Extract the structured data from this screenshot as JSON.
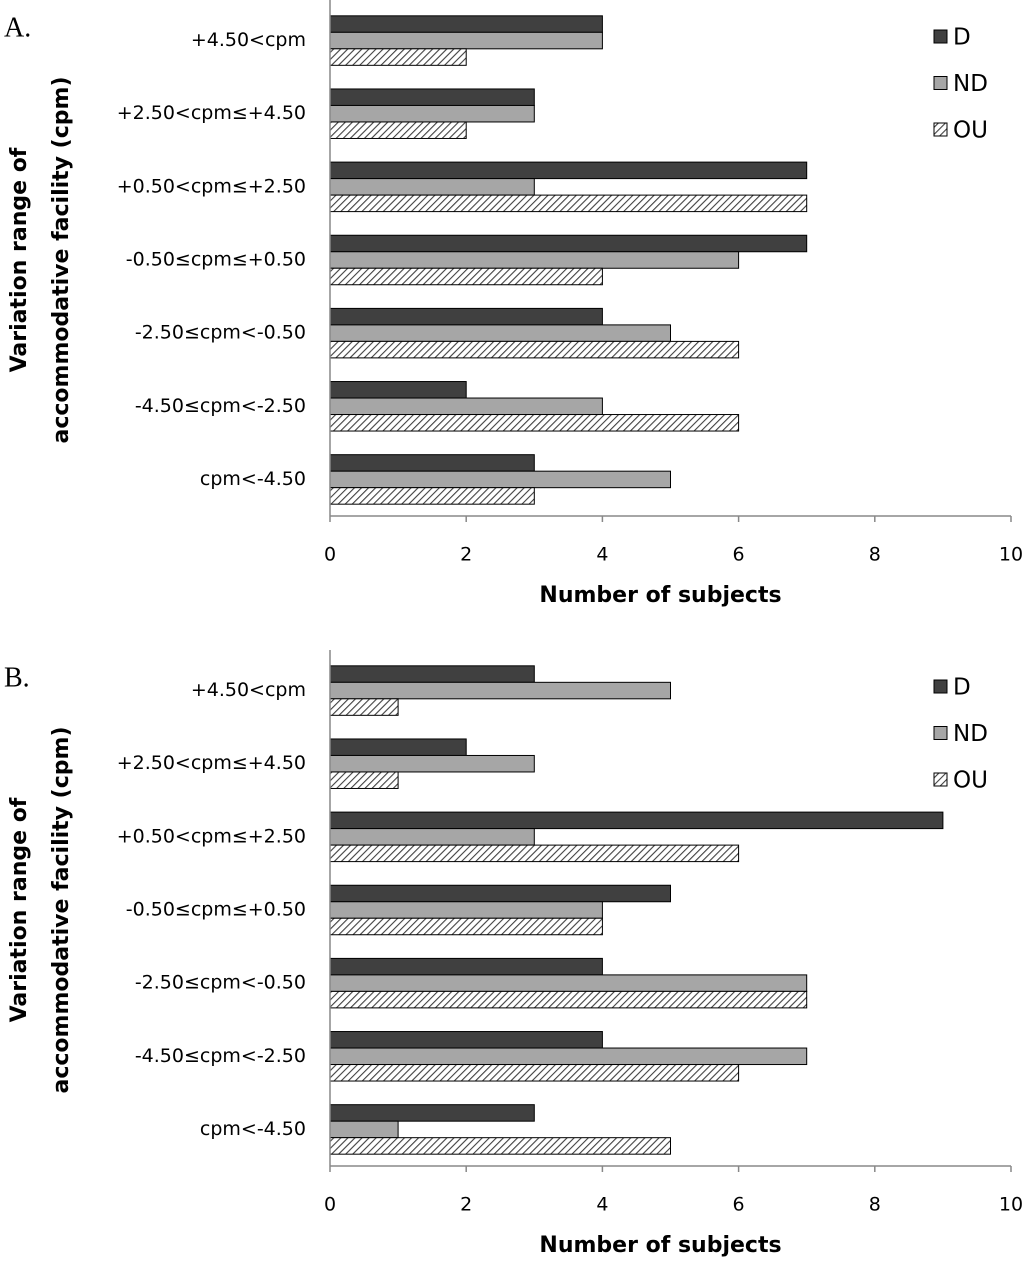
{
  "chart_data": [
    {
      "type": "bar",
      "orientation": "horizontal",
      "panel_label": "A.",
      "ylabel": [
        "Variation range of",
        "accommodative facility (cpm)"
      ],
      "xlabel": "Number of subjects",
      "categories": [
        "+4.50<cpm",
        "+2.50<cpm≤+4.50",
        "+0.50<cpm≤+2.50",
        "-0.50≤cpm≤+0.50",
        "-2.50≤cpm<-0.50",
        "-4.50≤cpm<-2.50",
        "cpm<-4.50"
      ],
      "series": [
        {
          "name": "D",
          "color": "#404040",
          "values": [
            4,
            3,
            7,
            7,
            4,
            2,
            3
          ]
        },
        {
          "name": "ND",
          "color": "#a6a6a6",
          "values": [
            4,
            3,
            3,
            6,
            5,
            4,
            5
          ]
        },
        {
          "name": "OU",
          "color": "#404040",
          "hatch": true,
          "values": [
            2,
            2,
            7,
            4,
            6,
            6,
            3
          ]
        }
      ],
      "xlim": [
        0,
        10
      ],
      "xticks": [
        0,
        2,
        4,
        6,
        8,
        10
      ],
      "grid": false,
      "legend": "top-right"
    },
    {
      "type": "bar",
      "orientation": "horizontal",
      "panel_label": "B.",
      "ylabel": [
        "Variation range of",
        "accommodative facility (cpm)"
      ],
      "xlabel": "Number of subjects",
      "categories": [
        "+4.50<cpm",
        "+2.50<cpm≤+4.50",
        "+0.50<cpm≤+2.50",
        "-0.50≤cpm≤+0.50",
        "-2.50≤cpm<-0.50",
        "-4.50≤cpm<-2.50",
        "cpm<-4.50"
      ],
      "series": [
        {
          "name": "D",
          "color": "#404040",
          "values": [
            3,
            2,
            9,
            5,
            4,
            4,
            3
          ]
        },
        {
          "name": "ND",
          "color": "#a6a6a6",
          "values": [
            5,
            3,
            3,
            4,
            7,
            7,
            1
          ]
        },
        {
          "name": "OU",
          "color": "#404040",
          "hatch": true,
          "values": [
            1,
            1,
            6,
            4,
            7,
            6,
            5
          ]
        }
      ],
      "xlim": [
        0,
        10
      ],
      "xticks": [
        0,
        2,
        4,
        6,
        8,
        10
      ],
      "grid": false,
      "legend": "top-right"
    }
  ]
}
